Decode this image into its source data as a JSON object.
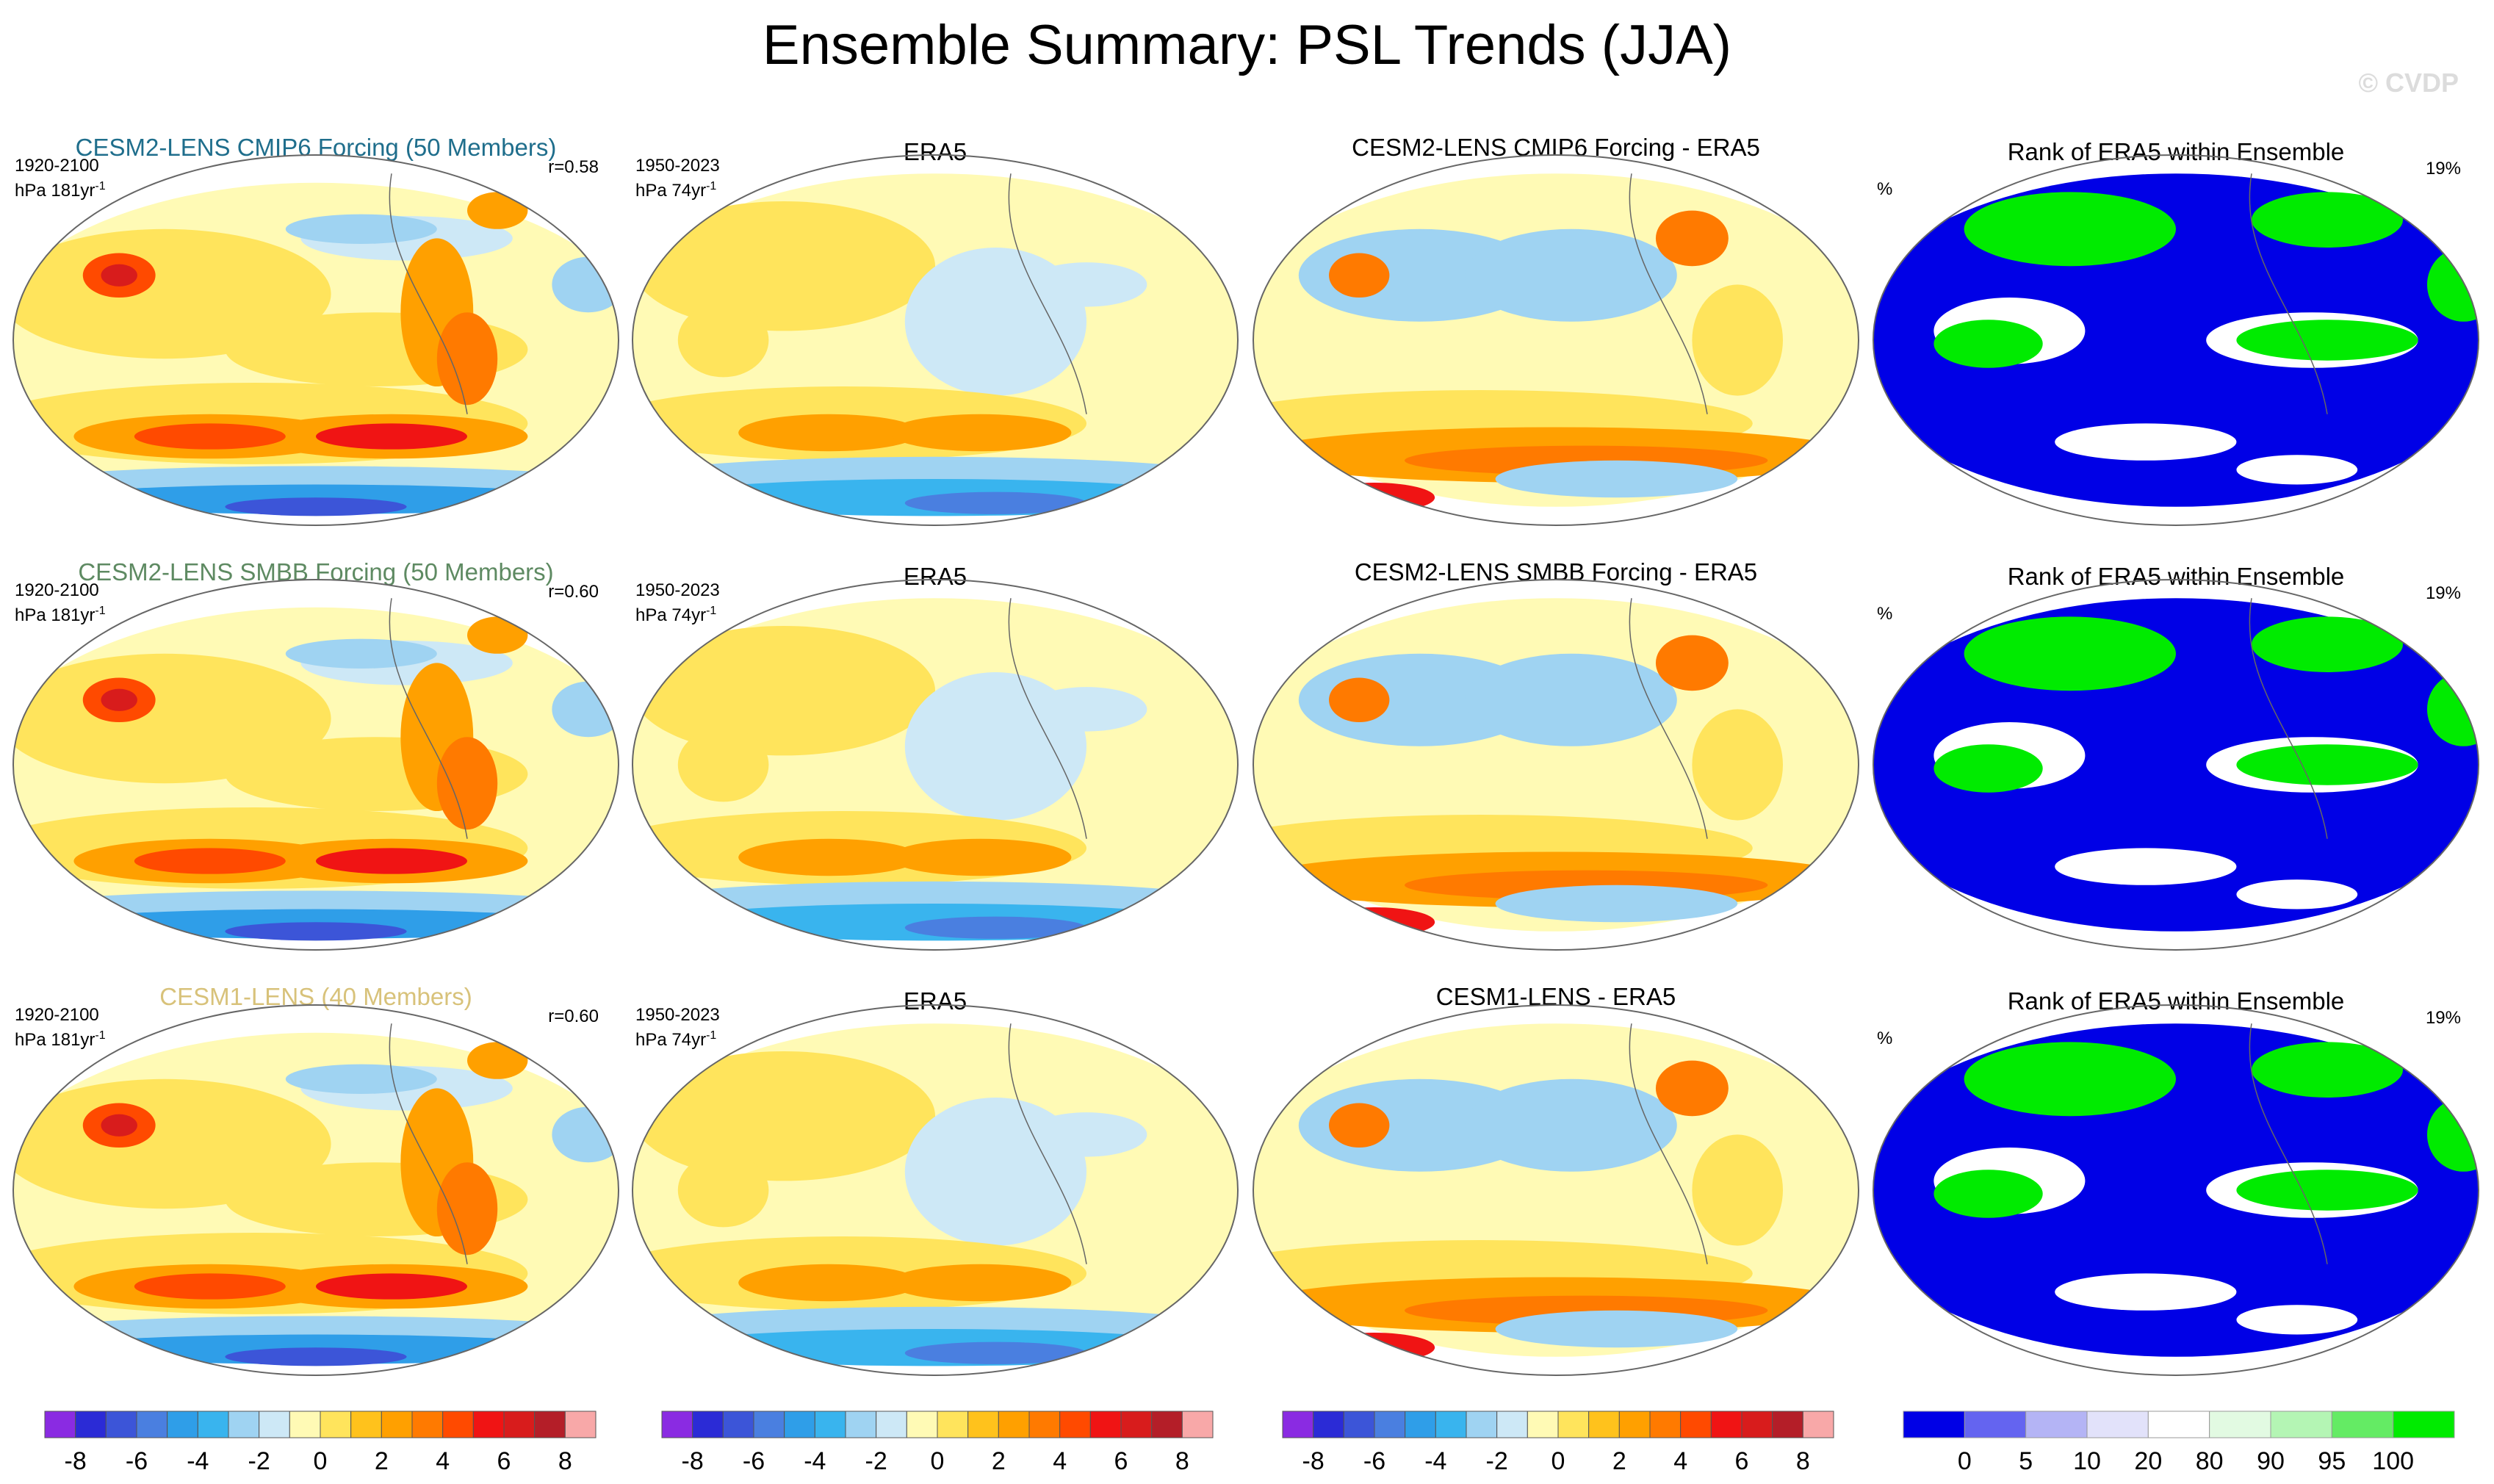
{
  "title": "Ensemble Summary: PSL Trends (JJA)",
  "watermark": "© CVDP",
  "rows": [
    {
      "ensemble": {
        "title": "CESM2-LENS CMIP6 Forcing (50 Members)",
        "title_color": "#1f6e8c",
        "period": "1920-2100",
        "units": "hPa 181yr",
        "units_sup": "-1",
        "r": "r=0.58"
      },
      "era5": {
        "title": "ERA5",
        "period": "1950-2023",
        "units": "hPa 74yr",
        "units_sup": "-1"
      },
      "diff": {
        "title": "CESM2-LENS CMIP6 Forcing - ERA5"
      },
      "rank": {
        "title": "Rank of ERA5 within Ensemble",
        "pct_symbol": "%",
        "pct_value": "19%"
      }
    },
    {
      "ensemble": {
        "title": "CESM2-LENS SMBB Forcing (50 Members)",
        "title_color": "#5e8a62",
        "period": "1920-2100",
        "units": "hPa 181yr",
        "units_sup": "-1",
        "r": "r=0.60"
      },
      "era5": {
        "title": "ERA5",
        "period": "1950-2023",
        "units": "hPa 74yr",
        "units_sup": "-1"
      },
      "diff": {
        "title": "CESM2-LENS SMBB Forcing - ERA5"
      },
      "rank": {
        "title": "Rank of ERA5 within Ensemble",
        "pct_symbol": "%",
        "pct_value": "19%"
      }
    },
    {
      "ensemble": {
        "title": "CESM1-LENS (40 Members)",
        "title_color": "#d8c27a",
        "period": "1920-2100",
        "units": "hPa 181yr",
        "units_sup": "-1",
        "r": "r=0.60"
      },
      "era5": {
        "title": "ERA5",
        "period": "1950-2023",
        "units": "hPa 74yr",
        "units_sup": "-1"
      },
      "diff": {
        "title": "CESM1-LENS - ERA5"
      },
      "rank": {
        "title": "Rank of ERA5 within Ensemble",
        "pct_symbol": "%",
        "pct_value": "19%"
      }
    }
  ],
  "chart_data": {
    "type": "heatmap",
    "variable": "PSL trends (JJA)",
    "trend_colorbar": {
      "colors": [
        "#8a2be2",
        "#2b2bd6",
        "#3c55d8",
        "#4a7fe0",
        "#2f9ee8",
        "#39b4ee",
        "#9fd3f2",
        "#cde8f6",
        "#fffab5",
        "#ffe45c",
        "#ffc21c",
        "#ffa000",
        "#ff7a00",
        "#ff4a00",
        "#f01414",
        "#d81c1c",
        "#b41e28",
        "#f8a8a8"
      ],
      "labels": [
        "-8",
        "-6",
        "-4",
        "-2",
        "0",
        "2",
        "4",
        "6",
        "8"
      ],
      "label_values": [
        -8,
        -6,
        -4,
        -2,
        0,
        2,
        4,
        6,
        8
      ],
      "range": [
        -9,
        9
      ]
    },
    "rank_colorbar": {
      "colors": [
        "#0000e6",
        "#6464f0",
        "#b4b4f5",
        "#e2e2fa",
        "#ffffff",
        "#e2fae2",
        "#b4f5b4",
        "#64eb64",
        "#00eb00"
      ],
      "labels": [
        "0",
        "5",
        "10",
        "20",
        "80",
        "90",
        "95",
        "100"
      ]
    },
    "panels": [
      "CESM2-LENS CMIP6 Forcing (50 Members)",
      "ERA5",
      "CESM2-LENS CMIP6 Forcing - ERA5",
      "Rank of ERA5 within Ensemble",
      "CESM2-LENS SMBB Forcing (50 Members)",
      "ERA5",
      "CESM2-LENS SMBB Forcing - ERA5",
      "Rank of ERA5 within Ensemble",
      "CESM1-LENS (40 Members)",
      "ERA5",
      "CESM1-LENS - ERA5",
      "Rank of ERA5 within Ensemble"
    ]
  }
}
